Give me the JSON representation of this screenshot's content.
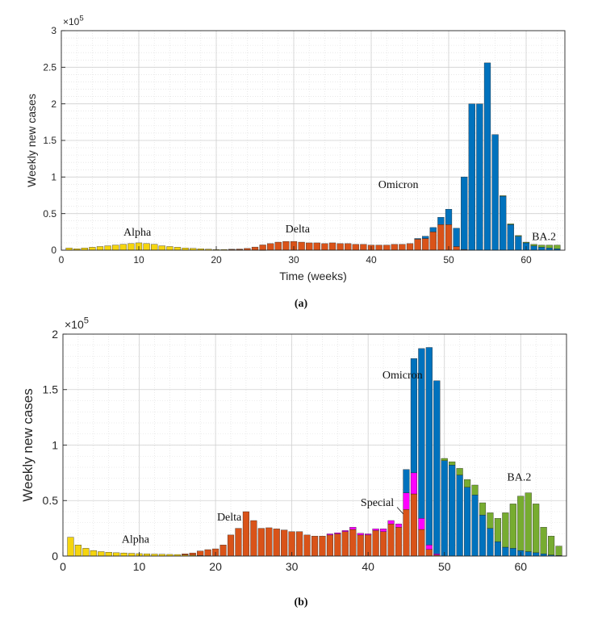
{
  "colors": {
    "alpha": "#EDB120",
    "alpha_light": "#F5D50F",
    "delta": "#D95319",
    "omicron": "#0072BD",
    "ba2": "#77AC30",
    "special": "#FF00FF"
  },
  "chart_data": [
    {
      "type": "bar",
      "stacked": true,
      "caption": "(a)",
      "xlabel": "Time (weeks)",
      "ylabel": "Weekly new cases",
      "exponent_label": "×10",
      "exponent_power": "5",
      "xlim": [
        0,
        65
      ],
      "ylim": [
        0,
        3
      ],
      "xticks": [
        0,
        10,
        20,
        30,
        40,
        50,
        60
      ],
      "yticks": [
        0,
        0.5,
        1,
        1.5,
        2,
        2.5,
        3
      ],
      "ytick_labels": [
        "0",
        "0.5",
        "1",
        "1.5",
        "2",
        "2.5",
        "3"
      ],
      "grid": true,
      "x": [
        1,
        2,
        3,
        4,
        5,
        6,
        7,
        8,
        9,
        10,
        11,
        12,
        13,
        14,
        15,
        16,
        17,
        18,
        19,
        20,
        21,
        22,
        23,
        24,
        25,
        26,
        27,
        28,
        29,
        30,
        31,
        32,
        33,
        34,
        35,
        36,
        37,
        38,
        39,
        40,
        41,
        42,
        43,
        44,
        45,
        46,
        47,
        48,
        49,
        50,
        51,
        52,
        53,
        54,
        55,
        56,
        57,
        58,
        59,
        60,
        61,
        62,
        63,
        64
      ],
      "series": [
        {
          "name": "Alpha",
          "color_key": "alpha_light",
          "values": [
            0.03,
            0.02,
            0.03,
            0.04,
            0.05,
            0.06,
            0.07,
            0.08,
            0.09,
            0.1,
            0.09,
            0.08,
            0.06,
            0.05,
            0.04,
            0.03,
            0.025,
            0.02,
            0.015,
            0.01,
            0.01,
            0.008,
            0.006,
            0.004,
            0.003,
            0.002,
            0,
            0,
            0,
            0,
            0,
            0,
            0,
            0,
            0,
            0,
            0,
            0,
            0,
            0,
            0,
            0,
            0,
            0,
            0,
            0,
            0,
            0,
            0,
            0,
            0,
            0,
            0,
            0,
            0,
            0,
            0,
            0,
            0,
            0,
            0,
            0,
            0,
            0
          ]
        },
        {
          "name": "Delta",
          "color_key": "delta",
          "values": [
            0,
            0,
            0,
            0,
            0,
            0,
            0,
            0,
            0,
            0,
            0,
            0,
            0,
            0,
            0,
            0,
            0,
            0,
            0,
            0,
            0,
            0.005,
            0.01,
            0.02,
            0.04,
            0.07,
            0.09,
            0.11,
            0.12,
            0.12,
            0.11,
            0.1,
            0.1,
            0.09,
            0.1,
            0.09,
            0.09,
            0.08,
            0.08,
            0.07,
            0.07,
            0.07,
            0.08,
            0.08,
            0.09,
            0.15,
            0.16,
            0.25,
            0.35,
            0.35,
            0.05,
            0.01,
            0,
            0,
            0,
            0,
            0,
            0,
            0,
            0,
            0,
            0,
            0,
            0
          ]
        },
        {
          "name": "Omicron",
          "color_key": "omicron",
          "values": [
            0,
            0,
            0,
            0,
            0,
            0,
            0,
            0,
            0,
            0,
            0,
            0,
            0,
            0,
            0,
            0,
            0,
            0,
            0,
            0,
            0,
            0,
            0,
            0,
            0,
            0,
            0,
            0,
            0,
            0,
            0,
            0,
            0,
            0,
            0,
            0,
            0,
            0,
            0,
            0,
            0,
            0,
            0,
            0,
            0,
            0.01,
            0.03,
            0.06,
            0.1,
            0.21,
            0.25,
            0.99,
            2.0,
            2.0,
            2.56,
            1.58,
            0.74,
            0.35,
            0.19,
            0.1,
            0.06,
            0.04,
            0.03,
            0.02
          ]
        },
        {
          "name": "BA.2",
          "color_key": "ba2",
          "values": [
            0,
            0,
            0,
            0,
            0,
            0,
            0,
            0,
            0,
            0,
            0,
            0,
            0,
            0,
            0,
            0,
            0,
            0,
            0,
            0,
            0,
            0,
            0,
            0,
            0,
            0,
            0,
            0,
            0,
            0,
            0,
            0,
            0,
            0,
            0,
            0,
            0,
            0,
            0,
            0,
            0,
            0,
            0,
            0,
            0,
            0,
            0,
            0,
            0,
            0,
            0,
            0,
            0,
            0,
            0,
            0,
            0.005,
            0.01,
            0.01,
            0.01,
            0.02,
            0.03,
            0.04,
            0.05
          ]
        }
      ],
      "annotations": [
        {
          "text": "Alpha",
          "x": 9.8,
          "y": 0.2
        },
        {
          "text": "Delta",
          "x": 30.5,
          "y": 0.24
        },
        {
          "text": "Omicron",
          "x": 43.5,
          "y": 0.85
        },
        {
          "text": "BA.2",
          "x": 62.3,
          "y": 0.14
        }
      ]
    },
    {
      "type": "bar",
      "stacked": true,
      "caption": "(b)",
      "xlabel": "",
      "ylabel": "Weekly new cases",
      "exponent_label": "×10",
      "exponent_power": "5",
      "xlim": [
        0,
        66
      ],
      "ylim": [
        0,
        2
      ],
      "xticks": [
        0,
        10,
        20,
        30,
        40,
        50,
        60
      ],
      "yticks": [
        0,
        0.5,
        1,
        1.5,
        2
      ],
      "ytick_labels": [
        "0",
        "0.5",
        "1",
        "1.5",
        "2"
      ],
      "grid": true,
      "x": [
        1,
        2,
        3,
        4,
        5,
        6,
        7,
        8,
        9,
        10,
        11,
        12,
        13,
        14,
        15,
        16,
        17,
        18,
        19,
        20,
        21,
        22,
        23,
        24,
        25,
        26,
        27,
        28,
        29,
        30,
        31,
        32,
        33,
        34,
        35,
        36,
        37,
        38,
        39,
        40,
        41,
        42,
        43,
        44,
        45,
        46,
        47,
        48,
        49,
        50,
        51,
        52,
        53,
        54,
        55,
        56,
        57,
        58,
        59,
        60,
        61,
        62,
        63,
        64,
        65
      ],
      "series": [
        {
          "name": "Alpha",
          "color_key": "alpha_light",
          "values": [
            0.17,
            0.1,
            0.07,
            0.05,
            0.04,
            0.035,
            0.03,
            0.028,
            0.025,
            0.022,
            0.02,
            0.018,
            0.016,
            0.015,
            0.014,
            0.01,
            0.008,
            0.005,
            0.003,
            0,
            0,
            0,
            0,
            0,
            0,
            0,
            0,
            0,
            0,
            0,
            0,
            0,
            0,
            0,
            0,
            0,
            0,
            0,
            0,
            0,
            0,
            0,
            0,
            0,
            0,
            0,
            0,
            0,
            0,
            0,
            0,
            0,
            0,
            0,
            0,
            0,
            0,
            0,
            0,
            0,
            0,
            0,
            0,
            0,
            0
          ]
        },
        {
          "name": "Delta",
          "color_key": "delta",
          "values": [
            0,
            0,
            0,
            0,
            0,
            0,
            0,
            0,
            0,
            0,
            0,
            0,
            0,
            0,
            0,
            0.01,
            0.02,
            0.04,
            0.055,
            0.065,
            0.1,
            0.19,
            0.25,
            0.4,
            0.32,
            0.25,
            0.255,
            0.245,
            0.235,
            0.22,
            0.22,
            0.19,
            0.18,
            0.18,
            0.19,
            0.2,
            0.22,
            0.24,
            0.19,
            0.19,
            0.23,
            0.22,
            0.29,
            0.26,
            0.42,
            0.56,
            0.24,
            0.06,
            0.01,
            0,
            0,
            0,
            0,
            0,
            0,
            0,
            0,
            0,
            0,
            0,
            0,
            0,
            0,
            0,
            0
          ]
        },
        {
          "name": "Special",
          "color_key": "special",
          "values": [
            0,
            0,
            0,
            0,
            0,
            0,
            0,
            0,
            0,
            0,
            0,
            0,
            0,
            0,
            0,
            0,
            0,
            0,
            0,
            0,
            0,
            0,
            0,
            0,
            0,
            0,
            0,
            0,
            0,
            0,
            0,
            0,
            0,
            0,
            0.01,
            0.01,
            0.01,
            0.02,
            0.015,
            0.01,
            0.015,
            0.025,
            0.03,
            0.03,
            0.15,
            0.19,
            0.1,
            0.04,
            0.01,
            0,
            0,
            0,
            0,
            0,
            0,
            0,
            0,
            0,
            0,
            0,
            0,
            0,
            0,
            0,
            0
          ]
        },
        {
          "name": "Omicron",
          "color_key": "omicron",
          "values": [
            0,
            0,
            0,
            0,
            0,
            0,
            0,
            0,
            0,
            0,
            0,
            0,
            0,
            0,
            0,
            0,
            0,
            0,
            0,
            0,
            0,
            0,
            0,
            0,
            0,
            0,
            0,
            0,
            0,
            0,
            0,
            0,
            0,
            0,
            0,
            0,
            0,
            0,
            0,
            0,
            0,
            0,
            0,
            0,
            0.21,
            1.03,
            1.53,
            1.78,
            1.56,
            0.86,
            0.82,
            0.73,
            0.62,
            0.55,
            0.37,
            0.25,
            0.13,
            0.08,
            0.07,
            0.05,
            0.04,
            0.03,
            0.02,
            0.01,
            0.005
          ]
        },
        {
          "name": "BA.2",
          "color_key": "ba2",
          "values": [
            0,
            0,
            0,
            0,
            0,
            0,
            0,
            0,
            0,
            0,
            0,
            0,
            0,
            0,
            0,
            0,
            0,
            0,
            0,
            0,
            0,
            0,
            0,
            0,
            0,
            0,
            0,
            0,
            0,
            0,
            0,
            0,
            0,
            0,
            0,
            0,
            0,
            0,
            0,
            0,
            0,
            0,
            0,
            0,
            0,
            0,
            0,
            0,
            0,
            0.02,
            0.03,
            0.06,
            0.07,
            0.09,
            0.11,
            0.14,
            0.21,
            0.31,
            0.4,
            0.49,
            0.53,
            0.44,
            0.24,
            0.17,
            0.085
          ]
        }
      ],
      "annotations": [
        {
          "text": "Alpha",
          "x": 9.5,
          "y": 0.12
        },
        {
          "text": "Delta",
          "x": 21.8,
          "y": 0.32
        },
        {
          "text": "Omicron",
          "x": 44.5,
          "y": 1.6
        },
        {
          "text": "Special",
          "x": 41.2,
          "y": 0.45
        },
        {
          "text": "BA.2",
          "x": 59.8,
          "y": 0.68
        }
      ]
    }
  ]
}
